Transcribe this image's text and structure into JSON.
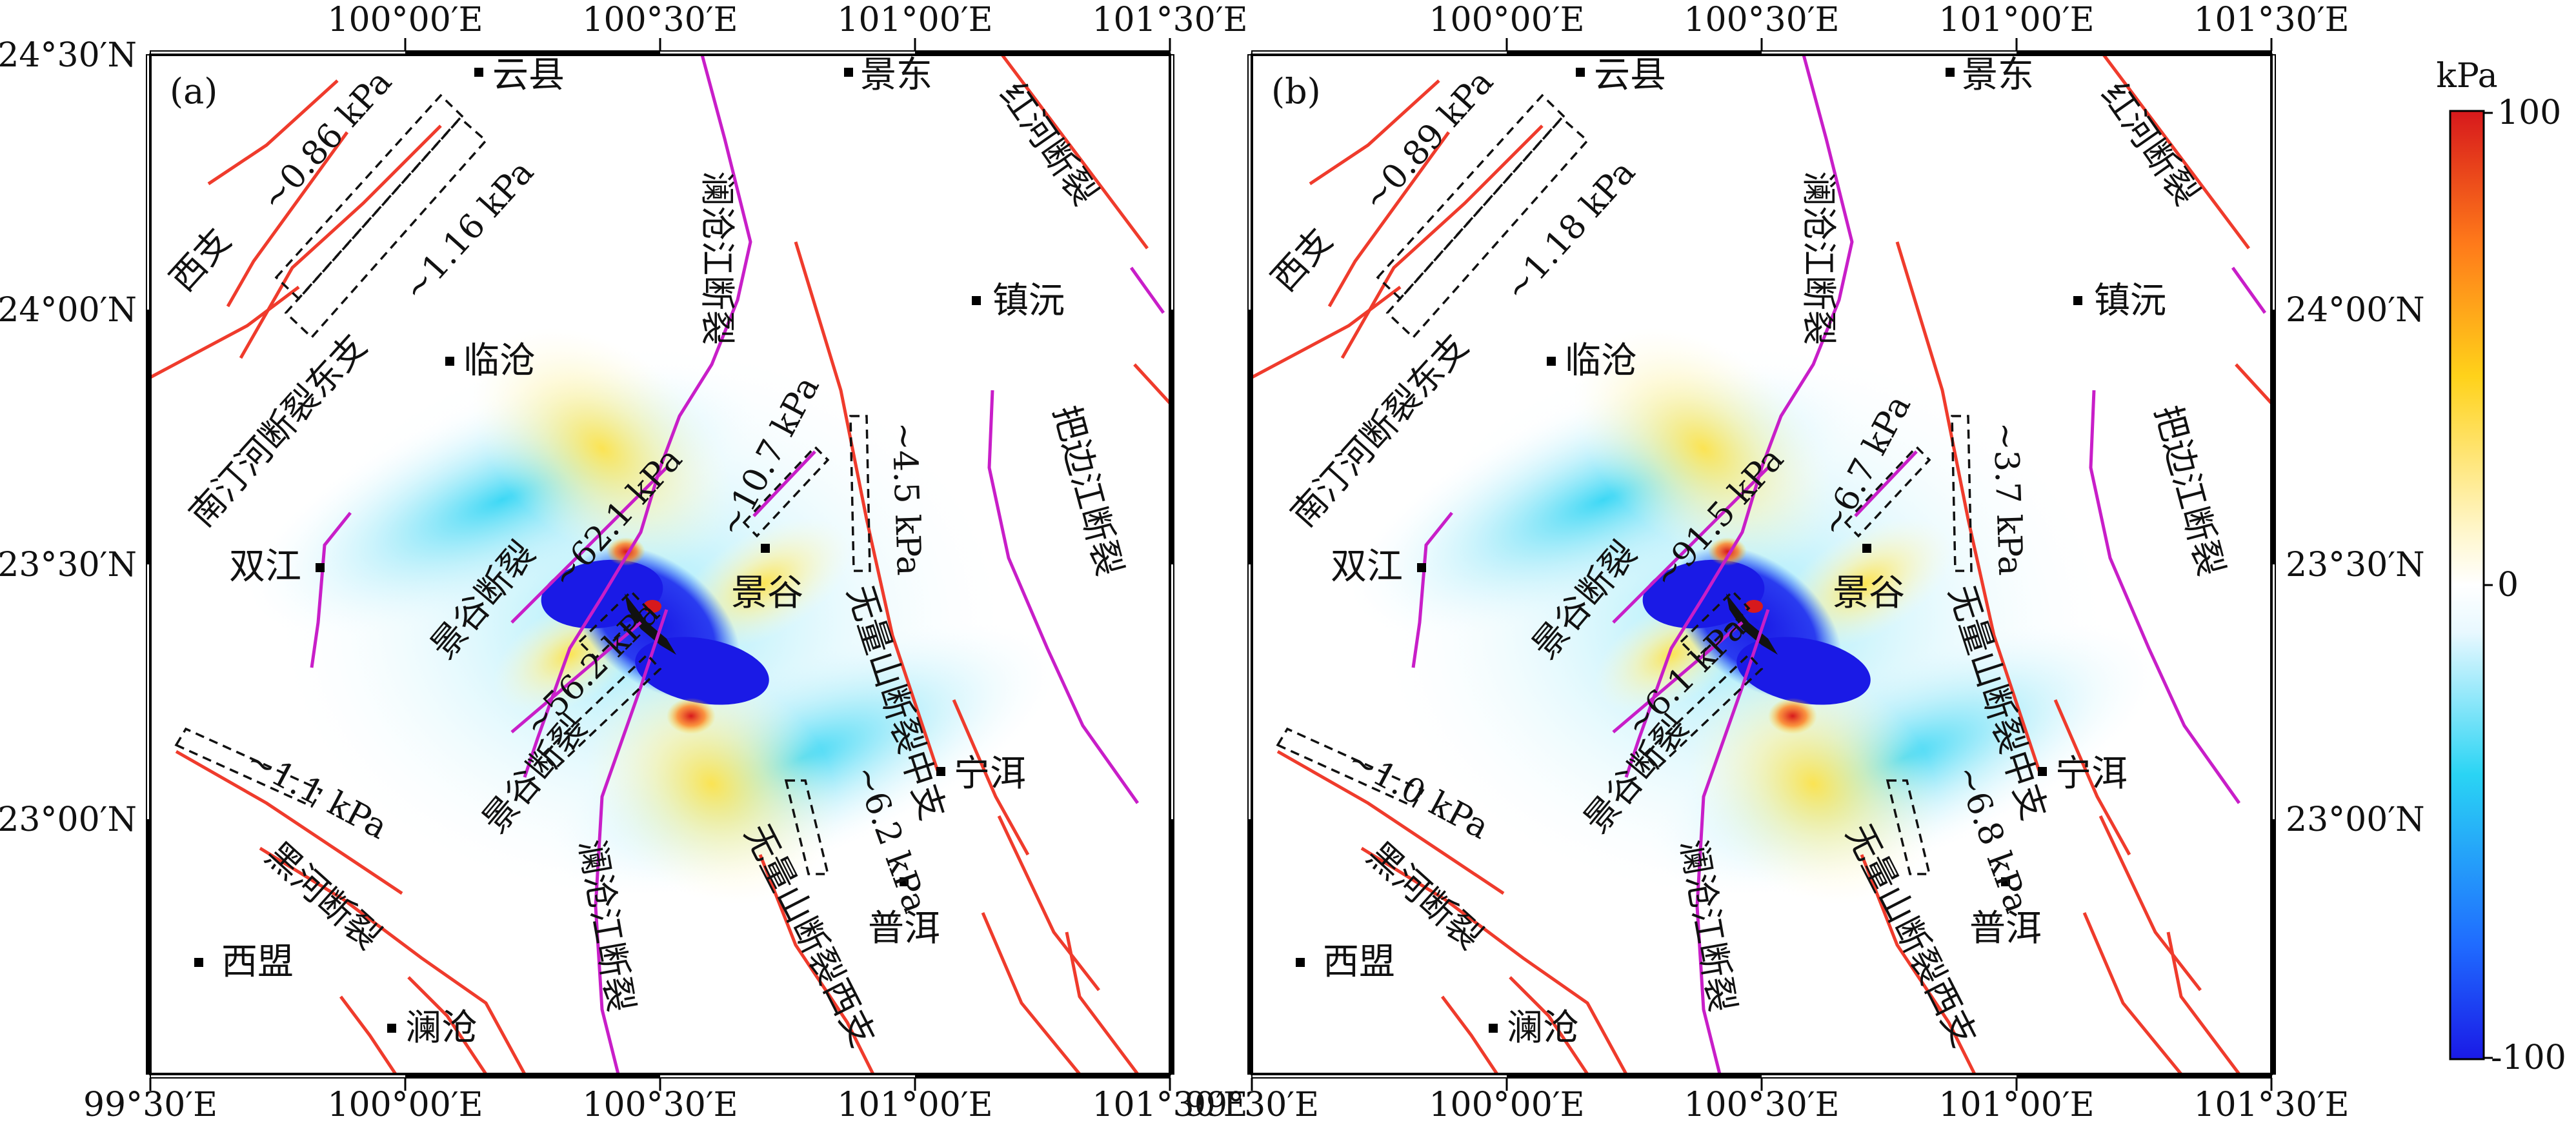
{
  "colors": {
    "fault_red": "#ef3b2c",
    "fault_magenta": "#c81ec8",
    "colormap": [
      "#1a1ae6",
      "#1f6bff",
      "#2ad4f4",
      "#e8f8ff",
      "#ffffff",
      "#fff6c8",
      "#ffd21a",
      "#ff7a1a",
      "#d7191c"
    ]
  },
  "axes": {
    "top_ticks": [
      "100°00′E",
      "100°30′E",
      "101°00′E",
      "101°30′E"
    ],
    "bottom_ticks": [
      "99°30′E",
      "100°00′E",
      "100°30′E",
      "101°00′E",
      "101°30′E"
    ],
    "lat_ticks": [
      "24°30′N",
      "24°00′N",
      "23°30′N",
      "23°00′N"
    ]
  },
  "colorbar": {
    "unit": "kPa",
    "max_label": "100",
    "mid_label": "0",
    "min_label": "-100",
    "min": -100,
    "max": 100
  },
  "panels": [
    {
      "label": "(a)",
      "towns": [
        "云县",
        "景东",
        "镇沅",
        "临沧",
        "双江",
        "景谷",
        "宁洱",
        "普洱",
        "西盟",
        "澜沧"
      ],
      "faults": {
        "xizhi": "西支",
        "nantinghe_east": "南汀河断裂东支",
        "lancang_north": "澜沧江断裂",
        "honghe": "红河断裂",
        "babian": "把边江断裂",
        "jinggu_upper": "景谷断裂",
        "jinggu_lower": "景谷断裂",
        "wuliang_middle": "无量山断裂中支",
        "wuliang_west": "无量山断裂西支",
        "heihe": "黑河断裂",
        "lancang_south": "澜沧江断裂"
      },
      "values": {
        "nantinghe_west": "~0.86 kPa",
        "nantinghe_east": "~1.16 kPa",
        "jinggu_upper": "~62.1 kPa",
        "jinggu_lower": "~56.2 kPa",
        "jinggu_ne": "~10.7 kPa",
        "wuliang_middle": "~4.5 kPa",
        "wuliang_west": "~6.2 kPa",
        "heihe": "~1.1 kPa"
      }
    },
    {
      "label": "(b)",
      "towns": [
        "云县",
        "景东",
        "镇沅",
        "临沧",
        "双江",
        "景谷",
        "宁洱",
        "普洱",
        "西盟",
        "澜沧"
      ],
      "faults": {
        "xizhi": "西支",
        "nantinghe_east": "南汀河断裂东支",
        "lancang_north": "澜沧江断裂",
        "honghe": "红河断裂",
        "babian": "把边江断裂",
        "jinggu_upper": "景谷断裂",
        "jinggu_lower": "景谷断裂",
        "wuliang_middle": "无量山断裂中支",
        "wuliang_west": "无量山断裂西支",
        "heihe": "黑河断裂",
        "lancang_south": "澜沧江断裂"
      },
      "values": {
        "nantinghe_west": "~0.89 kPa",
        "nantinghe_east": "~1.18 kPa",
        "jinggu_upper": "~91.5 kPa",
        "jinggu_lower": "~6.1 kPa",
        "jinggu_ne": "~6.7 kPa",
        "wuliang_middle": "~3.7 kPa",
        "wuliang_west": "~6.8 kPa",
        "heihe": "~1.0 kPa"
      }
    }
  ]
}
